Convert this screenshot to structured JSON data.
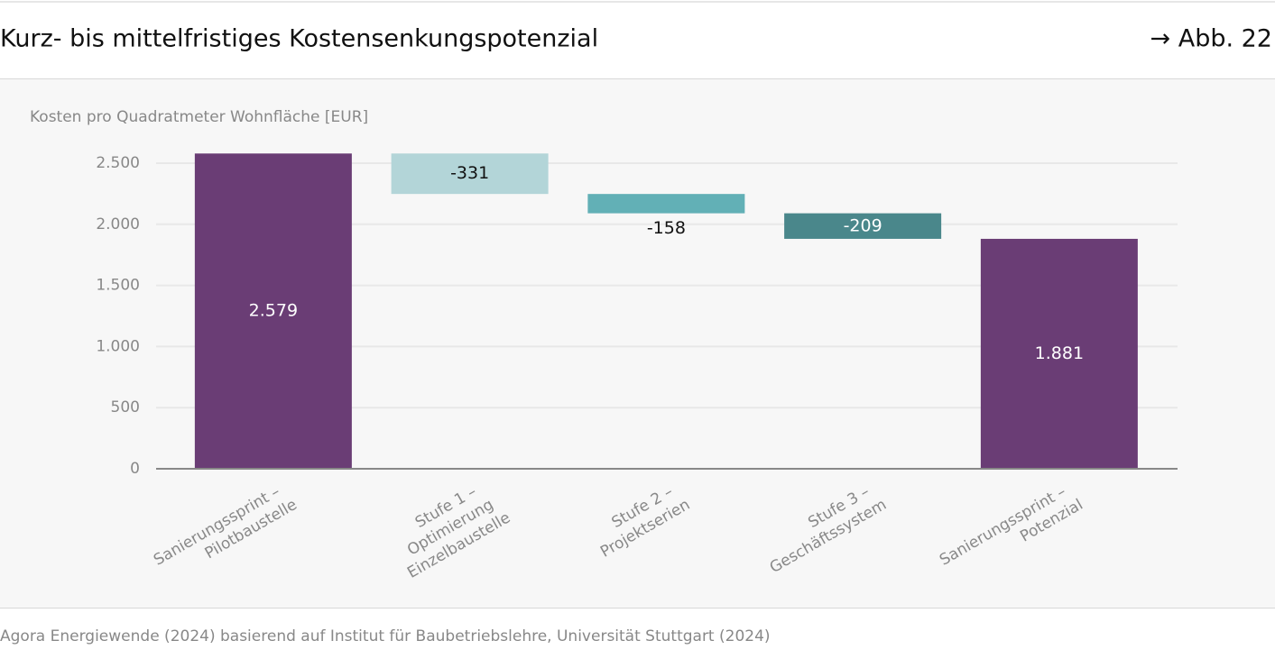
{
  "header": {
    "title": "Kurz- bis mittelfristiges Kostensenkungspotenzial",
    "figure_ref": "→ Abb. 22"
  },
  "chart_data": {
    "type": "waterfall",
    "y_label": "Kosten pro Quadratmeter Wohnfläche [EUR]",
    "categories": [
      [
        "Sanierungssprint –",
        "Pilotbaustelle"
      ],
      [
        "Stufe 1 –",
        "Optimierung",
        "Einzelbaustelle"
      ],
      [
        "Stufe 2 –",
        "Projektserien"
      ],
      [
        "Stufe 3 –",
        "Geschäftssystem"
      ],
      [
        "Sanierungssprint –",
        "Potenzial"
      ]
    ],
    "measure": [
      "absolute",
      "relative",
      "relative",
      "relative",
      "absolute"
    ],
    "values": [
      2579,
      -331,
      -158,
      -209,
      1881
    ],
    "value_labels": [
      "2.579",
      "-331",
      "-158",
      "-209",
      "1.881"
    ],
    "colors": [
      "#6a3d75",
      "#b3d5d8",
      "#62b0b6",
      "#4a878b",
      "#6a3d75"
    ],
    "ylim": [
      0,
      2700
    ],
    "yticks": [
      0,
      500,
      {
        "value": 1000,
        "label": "1.000"
      },
      {
        "value": 1500,
        "label": "1.500"
      },
      {
        "value": 2000,
        "label": "2.000"
      },
      {
        "value": 2500,
        "label": "2.500"
      }
    ],
    "grid": true
  },
  "footer": {
    "source": "Agora Energiewende (2024) basierend auf Institut für Baubetriebslehre, Universität Stuttgart (2024)"
  }
}
